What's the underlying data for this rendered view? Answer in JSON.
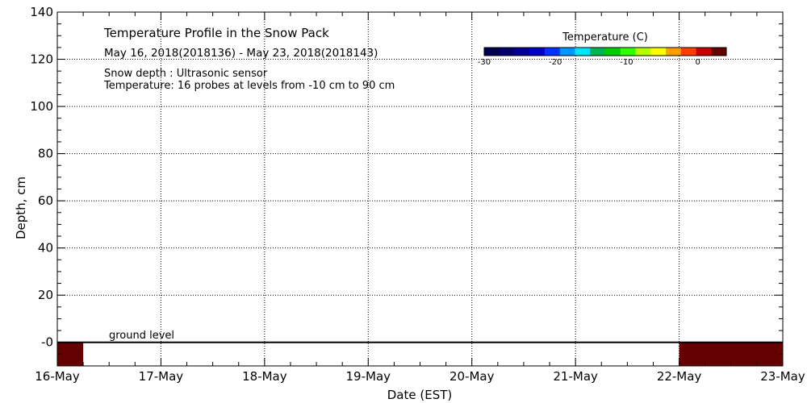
{
  "chart_data": {
    "type": "heatmap",
    "title": "Temperature Profile in the Snow Pack",
    "subtitle": "May 16, 2018(2018136) - May 23, 2018(2018143)",
    "annotations": {
      "snow_depth": "Snow depth : Ultrasonic sensor",
      "temperature": "Temperature: 16 probes at levels from -10 cm to 90 cm",
      "ground_level": "ground level"
    },
    "xlabel": "Date (EST)",
    "ylabel": "Depth, cm",
    "x_ticks": [
      "16-May",
      "17-May",
      "18-May",
      "19-May",
      "20-May",
      "21-May",
      "22-May",
      "23-May"
    ],
    "y_ticks": [
      "-0",
      "20",
      "40",
      "60",
      "80",
      "100",
      "120",
      "140"
    ],
    "ylim": [
      -10,
      140
    ],
    "grid": true,
    "ground_level_cm": 0,
    "colorbar": {
      "title": "Temperature (C)",
      "range": [
        -30,
        4
      ],
      "tick_values": [
        -30,
        -20,
        -10,
        0
      ],
      "tick_labels": [
        "-30",
        "-20",
        "-10",
        "0"
      ],
      "colors": [
        "#000050",
        "#00006e",
        "#000096",
        "#0000c8",
        "#0032ff",
        "#0096ff",
        "#00e6ff",
        "#00b450",
        "#00cd00",
        "#32ff00",
        "#b4ff00",
        "#ffff00",
        "#ffa000",
        "#ff3c00",
        "#c80000",
        "#640000"
      ]
    },
    "cells": [
      {
        "x_start": "16-May 00:00",
        "x_end": "16-May 06:00",
        "y_range": [
          -10,
          0
        ],
        "temperature": 3,
        "color": "#640000"
      },
      {
        "x_start": "22-May 00:00",
        "x_end": "23-May 00:00",
        "y_range": [
          -10,
          0
        ],
        "temperature": 3,
        "color": "#640000"
      }
    ]
  }
}
